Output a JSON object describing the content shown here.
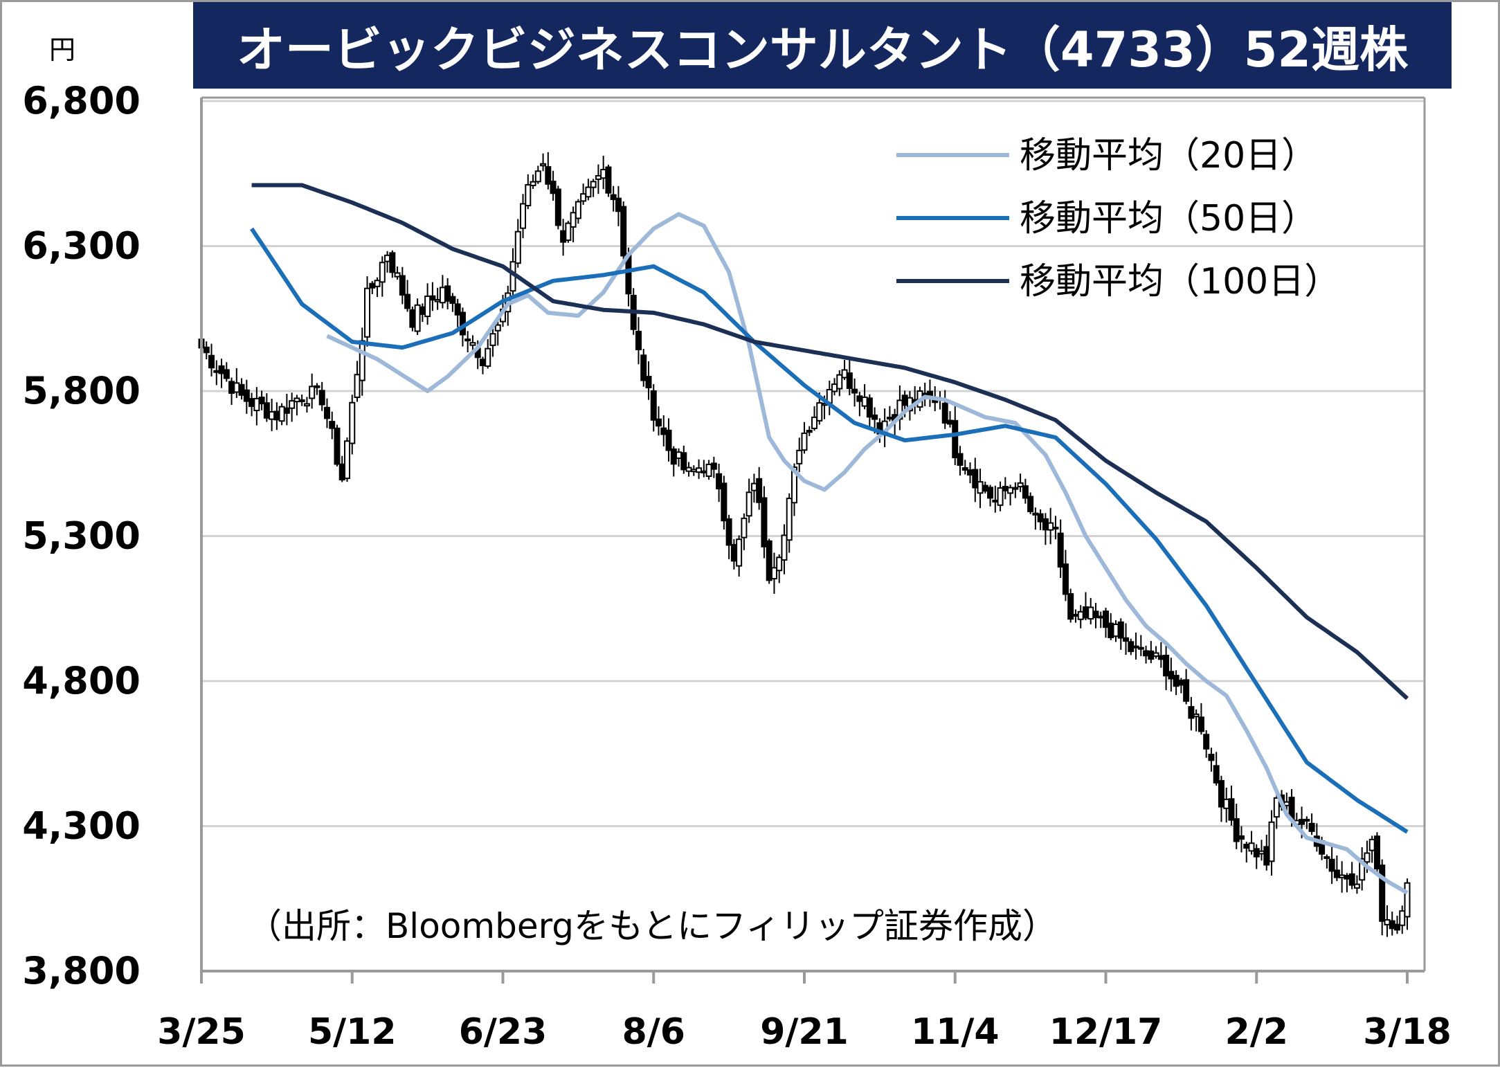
{
  "chart_data": {
    "type": "candlestick",
    "title": "オービックビジネスコンサルタント（4733）52週株",
    "unit": "円",
    "source": "（出所：Bloombergをもとにフィリップ証券作成）",
    "ylim": [
      3800,
      6800
    ],
    "y_ticks": [
      "6,800",
      "6,300",
      "5,800",
      "5,300",
      "4,800",
      "4,300",
      "3,800"
    ],
    "y_tick_values": [
      6800,
      6300,
      5800,
      5300,
      4800,
      4300,
      3800
    ],
    "x_ticks": [
      "3/25",
      "5/12",
      "6/23",
      "8/6",
      "9/21",
      "11/4",
      "12/17",
      "2/2",
      "3/18"
    ],
    "x_tick_index": [
      0,
      30,
      60,
      90,
      120,
      150,
      180,
      210,
      240
    ],
    "n_days": 241,
    "grid": true,
    "legend_position": "top-right",
    "colors": {
      "title_bg": "#14275f",
      "title_text": "#ffffff",
      "grid": "#d3d3d3",
      "axis": "#9a9a9a",
      "candle": "#000000"
    },
    "price_anchors": [
      [
        0,
        5950
      ],
      [
        8,
        5780
      ],
      [
        15,
        5720
      ],
      [
        20,
        5790
      ],
      [
        24,
        5780
      ],
      [
        28,
        5500
      ],
      [
        33,
        6120
      ],
      [
        37,
        6280
      ],
      [
        42,
        6050
      ],
      [
        48,
        6150
      ],
      [
        52,
        6020
      ],
      [
        56,
        5920
      ],
      [
        60,
        6050
      ],
      [
        64,
        6450
      ],
      [
        68,
        6600
      ],
      [
        72,
        6330
      ],
      [
        76,
        6450
      ],
      [
        80,
        6560
      ],
      [
        83,
        6430
      ],
      [
        86,
        6000
      ],
      [
        89,
        5780
      ],
      [
        93,
        5600
      ],
      [
        97,
        5510
      ],
      [
        100,
        5550
      ],
      [
        103,
        5480
      ],
      [
        106,
        5200
      ],
      [
        110,
        5500
      ],
      [
        113,
        5180
      ],
      [
        116,
        5300
      ],
      [
        119,
        5620
      ],
      [
        123,
        5760
      ],
      [
        127,
        5870
      ],
      [
        131,
        5800
      ],
      [
        135,
        5680
      ],
      [
        139,
        5750
      ],
      [
        143,
        5770
      ],
      [
        147,
        5780
      ],
      [
        150,
        5600
      ],
      [
        154,
        5500
      ],
      [
        158,
        5420
      ],
      [
        162,
        5490
      ],
      [
        166,
        5350
      ],
      [
        170,
        5300
      ],
      [
        173,
        5000
      ],
      [
        177,
        5020
      ],
      [
        181,
        4980
      ],
      [
        185,
        4910
      ],
      [
        189,
        4880
      ],
      [
        192,
        4850
      ],
      [
        196,
        4720
      ],
      [
        199,
        4650
      ],
      [
        203,
        4400
      ],
      [
        206,
        4280
      ],
      [
        209,
        4230
      ],
      [
        212,
        4180
      ],
      [
        214,
        4390
      ],
      [
        218,
        4330
      ],
      [
        222,
        4260
      ],
      [
        226,
        4130
      ],
      [
        230,
        4130
      ],
      [
        233,
        4250
      ],
      [
        235,
        4000
      ],
      [
        238,
        3950
      ],
      [
        240,
        4130
      ]
    ],
    "series": [
      {
        "name": "移動平均（20日）",
        "color": "#9db8d8",
        "anchors": [
          [
            0,
            5990
          ],
          [
            10,
            5910
          ],
          [
            20,
            5800
          ],
          [
            24,
            5850
          ],
          [
            30,
            5950
          ],
          [
            36,
            6100
          ],
          [
            40,
            6130
          ],
          [
            44,
            6070
          ],
          [
            50,
            6060
          ],
          [
            55,
            6140
          ],
          [
            60,
            6270
          ],
          [
            65,
            6360
          ],
          [
            70,
            6410
          ],
          [
            75,
            6370
          ],
          [
            80,
            6210
          ],
          [
            84,
            5960
          ],
          [
            88,
            5640
          ],
          [
            91,
            5560
          ],
          [
            95,
            5490
          ],
          [
            99,
            5460
          ],
          [
            103,
            5520
          ],
          [
            107,
            5600
          ],
          [
            111,
            5660
          ],
          [
            115,
            5730
          ],
          [
            119,
            5780
          ],
          [
            123,
            5770
          ],
          [
            127,
            5740
          ],
          [
            131,
            5710
          ],
          [
            137,
            5690
          ],
          [
            143,
            5580
          ],
          [
            147,
            5450
          ],
          [
            151,
            5300
          ],
          [
            155,
            5190
          ],
          [
            159,
            5080
          ],
          [
            163,
            4990
          ],
          [
            167,
            4930
          ],
          [
            171,
            4860
          ],
          [
            175,
            4800
          ],
          [
            179,
            4750
          ],
          [
            183,
            4630
          ],
          [
            187,
            4500
          ],
          [
            191,
            4340
          ],
          [
            195,
            4260
          ],
          [
            199,
            4240
          ],
          [
            203,
            4220
          ],
          [
            207,
            4160
          ],
          [
            211,
            4110
          ],
          [
            215,
            4070
          ]
        ]
      },
      {
        "name": "移動平均（50日）",
        "color": "#1b6fb8",
        "anchors": [
          [
            0,
            6360
          ],
          [
            10,
            6100
          ],
          [
            20,
            5970
          ],
          [
            30,
            5950
          ],
          [
            40,
            6000
          ],
          [
            50,
            6110
          ],
          [
            60,
            6180
          ],
          [
            70,
            6200
          ],
          [
            80,
            6230
          ],
          [
            90,
            6140
          ],
          [
            100,
            5970
          ],
          [
            110,
            5820
          ],
          [
            120,
            5690
          ],
          [
            130,
            5630
          ],
          [
            140,
            5650
          ],
          [
            150,
            5680
          ],
          [
            160,
            5640
          ],
          [
            170,
            5480
          ],
          [
            180,
            5290
          ],
          [
            190,
            5060
          ],
          [
            200,
            4790
          ],
          [
            210,
            4520
          ],
          [
            220,
            4390
          ],
          [
            230,
            4280
          ]
        ]
      },
      {
        "name": "移動平均（100日）",
        "color": "#1c2f54",
        "anchors": [
          [
            0,
            6510
          ],
          [
            5,
            6510
          ],
          [
            10,
            6510
          ],
          [
            20,
            6450
          ],
          [
            30,
            6380
          ],
          [
            40,
            6290
          ],
          [
            50,
            6230
          ],
          [
            60,
            6110
          ],
          [
            70,
            6080
          ],
          [
            80,
            6070
          ],
          [
            90,
            6030
          ],
          [
            100,
            5970
          ],
          [
            110,
            5940
          ],
          [
            120,
            5910
          ],
          [
            130,
            5880
          ],
          [
            140,
            5830
          ],
          [
            150,
            5770
          ],
          [
            160,
            5700
          ],
          [
            170,
            5560
          ],
          [
            180,
            5450
          ],
          [
            190,
            5350
          ],
          [
            200,
            5190
          ],
          [
            210,
            5020
          ],
          [
            220,
            4900
          ],
          [
            230,
            4740
          ]
        ]
      }
    ]
  }
}
